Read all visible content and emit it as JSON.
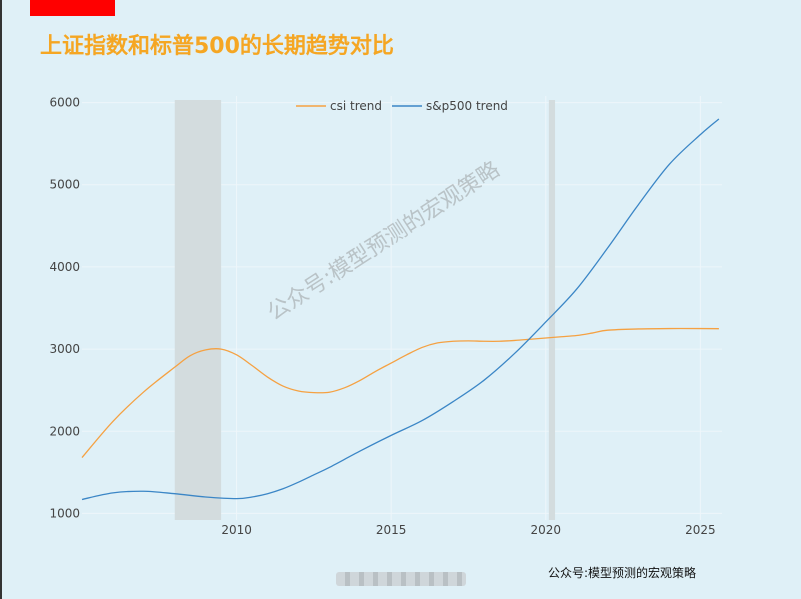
{
  "title": "上证指数和标普500的长期趋势对比",
  "watermark": "公众号:模型预测的宏观策略",
  "footer": "公众号:模型预测的宏观策略",
  "chart_data": {
    "type": "line",
    "title": "上证指数和标普500的长期趋势对比",
    "xlabel": "",
    "ylabel": "",
    "xlim": [
      2005,
      2025.7
    ],
    "ylim": [
      920,
      6080
    ],
    "x_ticks": [
      2010,
      2015,
      2020,
      2025
    ],
    "y_ticks": [
      1000,
      2000,
      3000,
      4000,
      5000,
      6000
    ],
    "grid": true,
    "legend_position": "top-center",
    "shaded_regions": [
      {
        "from": 2008.0,
        "to": 2009.5,
        "color": "#d3dcde"
      },
      {
        "from": 2020.1,
        "to": 2020.3,
        "color": "#d3dcde"
      }
    ],
    "series": [
      {
        "name": "csi trend",
        "color": "#f5a142",
        "x": [
          2005.0,
          2006.0,
          2007.0,
          2008.0,
          2008.5,
          2009.0,
          2009.5,
          2010.0,
          2010.5,
          2011.0,
          2011.5,
          2012.0,
          2012.5,
          2013.0,
          2013.5,
          2014.0,
          2014.5,
          2015.0,
          2015.5,
          2016.0,
          2016.5,
          2017.0,
          2017.5,
          2018.0,
          2018.5,
          2019.0,
          2019.5,
          2020.0,
          2020.5,
          2021.0,
          2021.5,
          2022.0,
          2023.0,
          2024.0,
          2025.0,
          2025.6
        ],
        "y": [
          1680,
          2120,
          2480,
          2780,
          2920,
          2990,
          3000,
          2930,
          2800,
          2660,
          2550,
          2490,
          2470,
          2475,
          2530,
          2620,
          2730,
          2830,
          2930,
          3020,
          3075,
          3095,
          3100,
          3095,
          3095,
          3105,
          3120,
          3135,
          3150,
          3165,
          3195,
          3230,
          3245,
          3250,
          3250,
          3248
        ]
      },
      {
        "name": "s&p500 trend",
        "color": "#3b86c6",
        "x": [
          2005.0,
          2006.0,
          2007.0,
          2008.0,
          2009.0,
          2010.0,
          2010.5,
          2011.0,
          2011.5,
          2012.0,
          2012.5,
          2013.0,
          2014.0,
          2015.0,
          2016.0,
          2017.0,
          2018.0,
          2019.0,
          2020.0,
          2021.0,
          2022.0,
          2023.0,
          2024.0,
          2025.0,
          2025.6
        ],
        "y": [
          1170,
          1250,
          1270,
          1240,
          1200,
          1180,
          1200,
          1240,
          1300,
          1380,
          1470,
          1560,
          1760,
          1950,
          2130,
          2360,
          2620,
          2950,
          3330,
          3730,
          4230,
          4760,
          5250,
          5610,
          5800
        ]
      }
    ]
  }
}
